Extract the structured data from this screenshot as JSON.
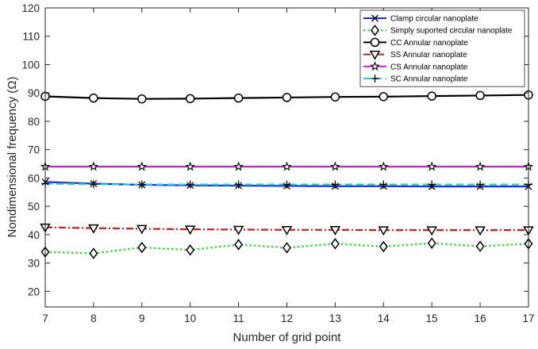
{
  "chart_data": {
    "type": "line",
    "title": "",
    "xlabel": "Number of grid point",
    "ylabel": "Nondimensional frequency (Ω)",
    "xlim": [
      7,
      17
    ],
    "ylim": [
      14.5,
      120
    ],
    "x_ticks": [
      7,
      8,
      9,
      10,
      11,
      12,
      13,
      14,
      15,
      16,
      17
    ],
    "y_ticks": [
      20,
      30,
      40,
      50,
      60,
      70,
      80,
      90,
      100,
      110,
      120
    ],
    "grid": false,
    "legend_position": "top-right",
    "x": [
      7,
      8,
      9,
      10,
      11,
      12,
      13,
      14,
      15,
      16,
      17
    ],
    "series": [
      {
        "name": "Clamp circular nanoplate",
        "color": "#1f2fc8",
        "line_style": "solid",
        "marker": "x",
        "values": [
          58.6,
          58.0,
          57.6,
          57.4,
          57.3,
          57.2,
          57.1,
          57.1,
          57.0,
          57.0,
          57.0
        ]
      },
      {
        "name": "Simply suported circular nanoplate",
        "color": "#32d232",
        "line_style": "dotted",
        "marker": "diamond",
        "values": [
          33.9,
          33.4,
          35.5,
          34.6,
          36.5,
          35.4,
          36.8,
          35.8,
          37.0,
          35.9,
          36.8
        ]
      },
      {
        "name": "CC Annular nanoplate",
        "color": "#000000",
        "line_style": "solid",
        "marker": "circle",
        "values": [
          88.8,
          88.2,
          87.9,
          88.0,
          88.2,
          88.4,
          88.6,
          88.7,
          88.9,
          89.1,
          89.3
        ]
      },
      {
        "name": "SS Annular nanoplate",
        "color": "#c81e1e",
        "line_style": "dashdot",
        "marker": "triangle-down",
        "values": [
          42.6,
          42.3,
          42.1,
          41.9,
          41.8,
          41.7,
          41.7,
          41.6,
          41.6,
          41.6,
          41.6
        ]
      },
      {
        "name": "CS Annular nanoplate",
        "color": "#d21ed2",
        "line_style": "solid",
        "marker": "star",
        "values": [
          64.0,
          64.0,
          64.0,
          64.0,
          64.0,
          64.0,
          64.0,
          64.0,
          64.0,
          64.0,
          64.0
        ]
      },
      {
        "name": "SC Annular nanoplate",
        "color": "#28c8dc",
        "line_style": "dashed",
        "marker": "plus",
        "values": [
          58.0,
          57.8,
          57.7,
          57.7,
          57.7,
          57.7,
          57.7,
          57.7,
          57.7,
          57.7,
          57.7
        ]
      }
    ]
  }
}
